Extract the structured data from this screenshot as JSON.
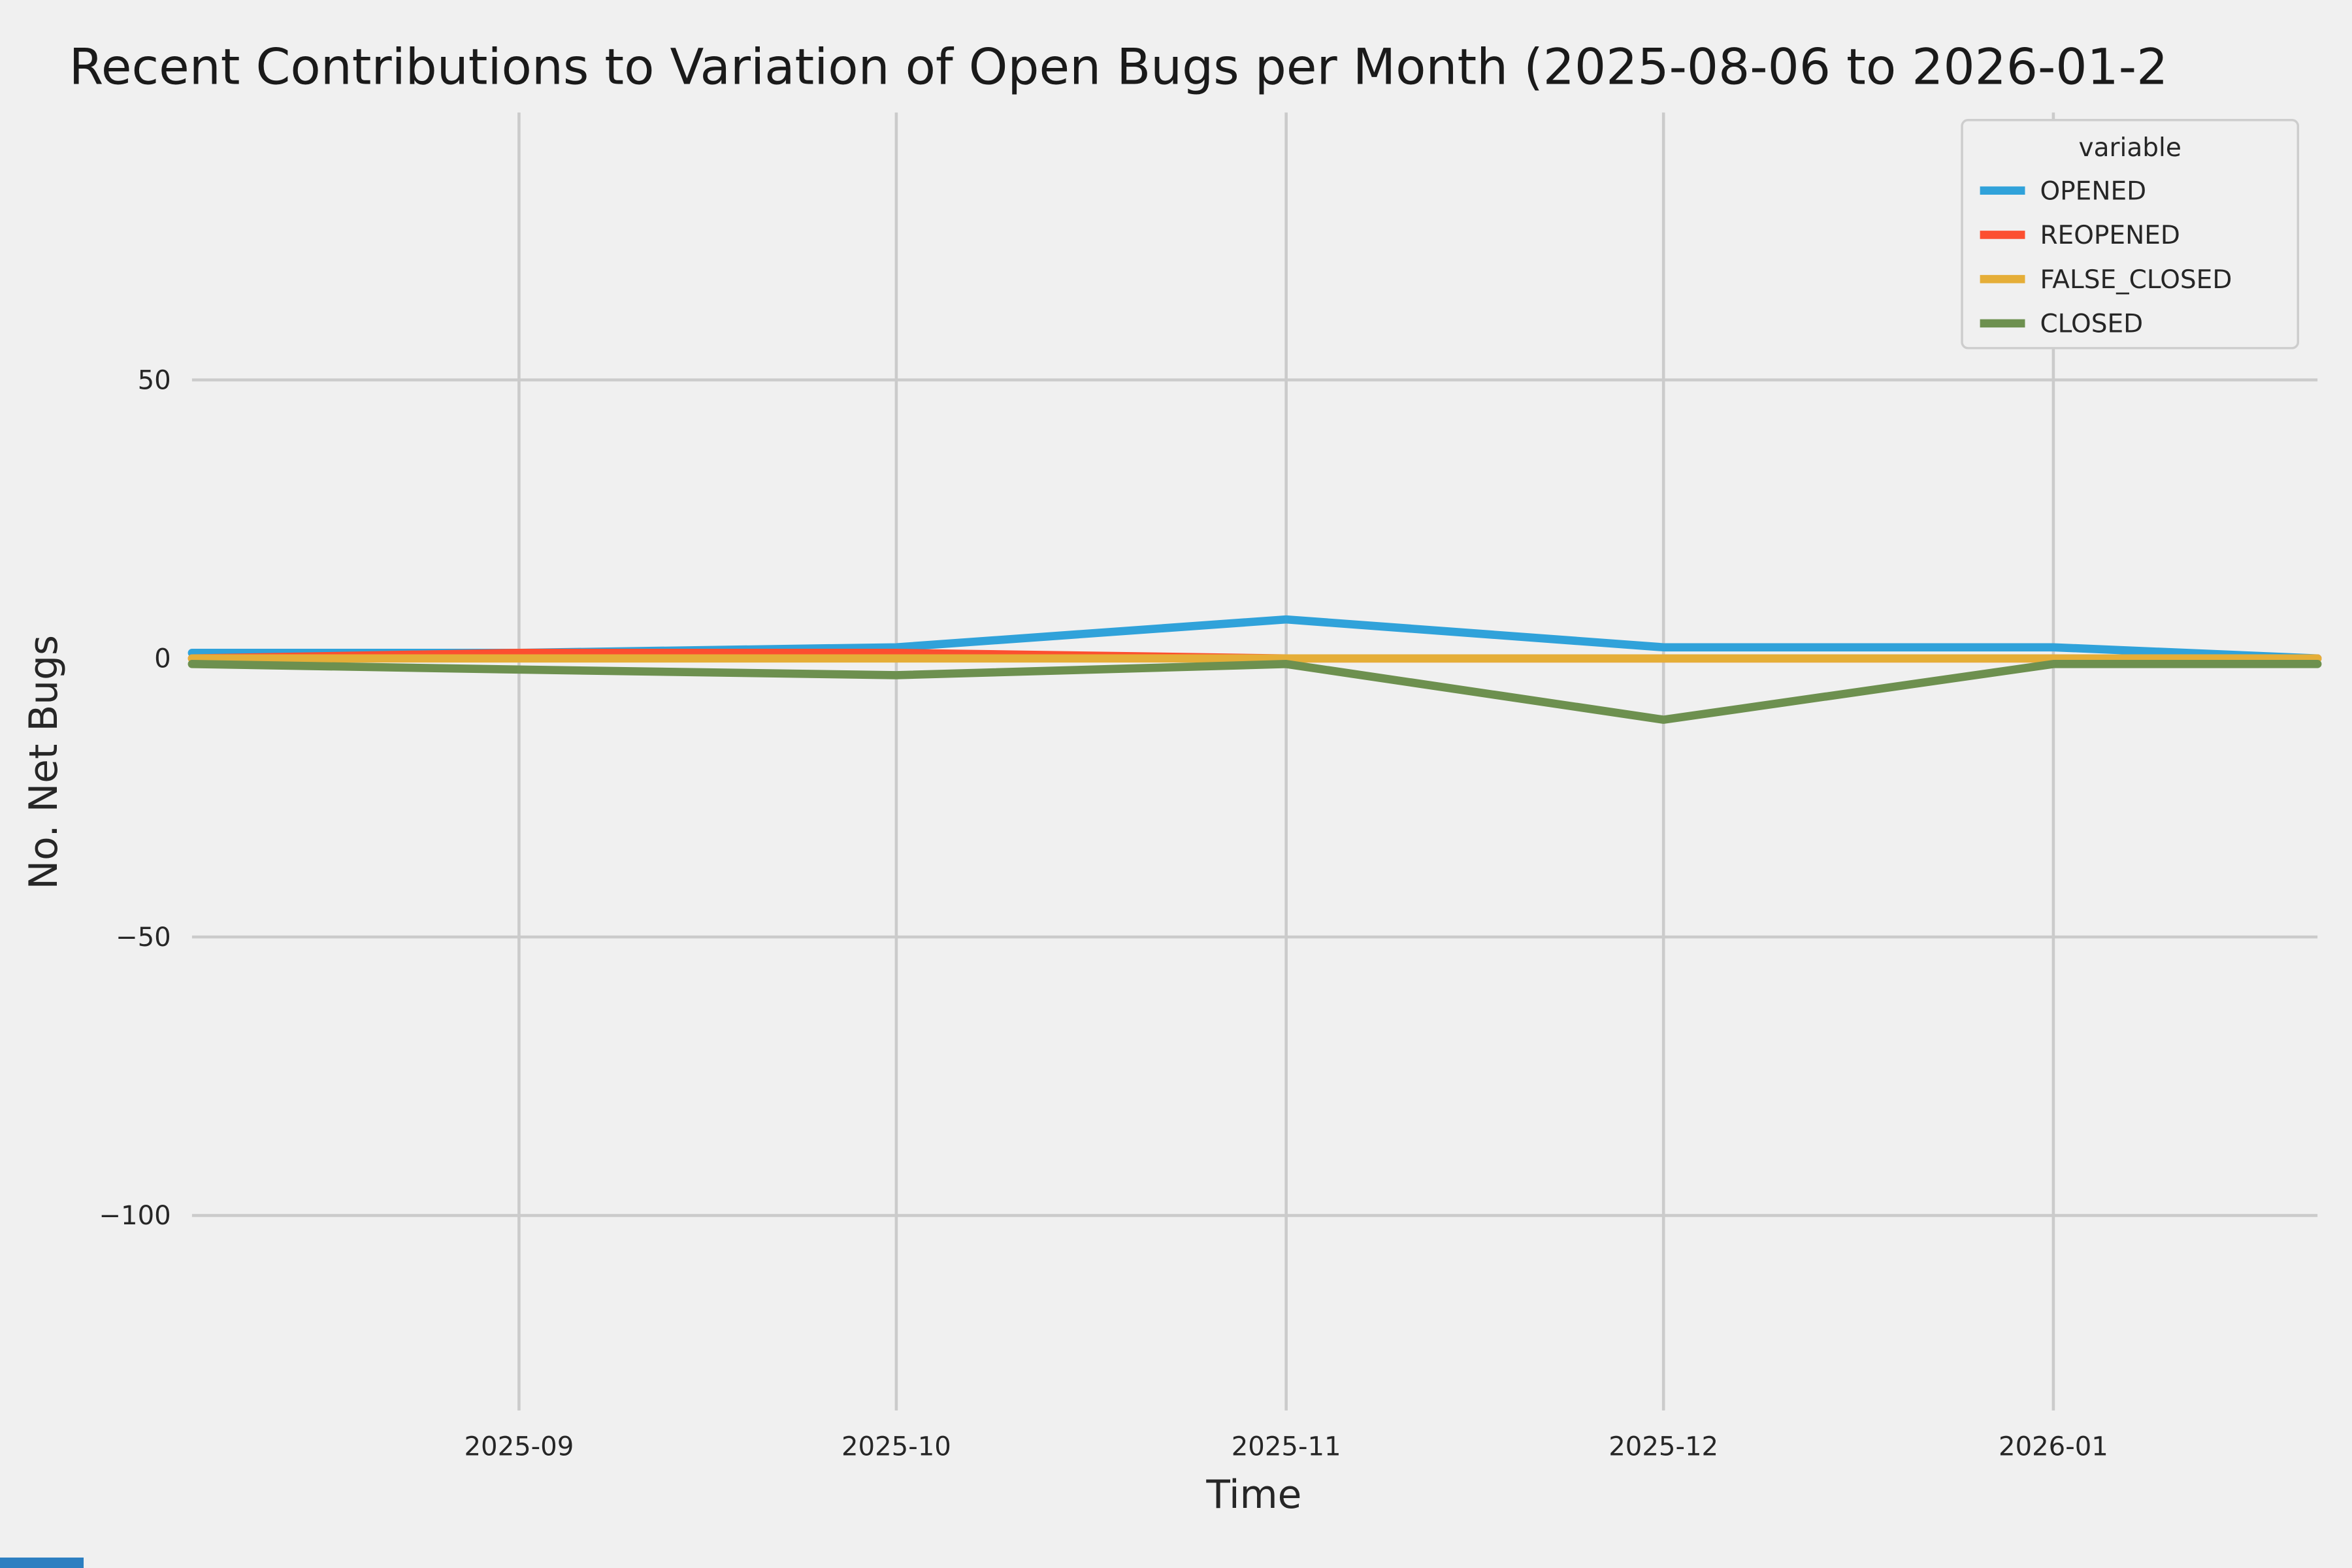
{
  "figure": {
    "background_color": "#f0f0f0",
    "grid_color": "#cbcbcb",
    "text_color": "#262626"
  },
  "chart_data": {
    "type": "line",
    "title": "Recent Contributions to Variation of Open Bugs per Month (2025-08-06 to 2026-01-2",
    "xlabel": "Time",
    "ylabel": "No. Net Bugs",
    "legend_title": "variable",
    "legend_position": "upper right",
    "grid": true,
    "x": [
      "2025-08-06",
      "2025-09-01",
      "2025-10-01",
      "2025-11-01",
      "2025-12-01",
      "2026-01-01",
      "2026-01-22"
    ],
    "series": [
      {
        "name": "OPENED",
        "color": "#30a2da",
        "values": [
          1,
          1,
          2,
          7,
          2,
          2,
          0
        ]
      },
      {
        "name": "REOPENED",
        "color": "#fc4f30",
        "values": [
          0,
          1,
          1,
          0,
          0,
          0,
          0
        ]
      },
      {
        "name": "FALSE_CLOSED",
        "color": "#e5ae38",
        "values": [
          0,
          0,
          0,
          0,
          0,
          0,
          0
        ]
      },
      {
        "name": "CLOSED",
        "color": "#6d904f",
        "values": [
          -1,
          -2,
          -3,
          -1,
          -11,
          -1,
          -1
        ]
      }
    ],
    "x_ticks": [
      {
        "value": "2025-09-01",
        "label": "2025-09"
      },
      {
        "value": "2025-10-01",
        "label": "2025-10"
      },
      {
        "value": "2025-11-01",
        "label": "2025-11"
      },
      {
        "value": "2025-12-01",
        "label": "2025-12"
      },
      {
        "value": "2026-01-01",
        "label": "2026-01"
      }
    ],
    "y_ticks": [
      {
        "value": 50,
        "label": "50"
      },
      {
        "value": 0,
        "label": "0"
      },
      {
        "value": -50,
        "label": "−50"
      },
      {
        "value": -100,
        "label": "−100"
      }
    ],
    "ylim": [
      -135,
      98
    ]
  }
}
